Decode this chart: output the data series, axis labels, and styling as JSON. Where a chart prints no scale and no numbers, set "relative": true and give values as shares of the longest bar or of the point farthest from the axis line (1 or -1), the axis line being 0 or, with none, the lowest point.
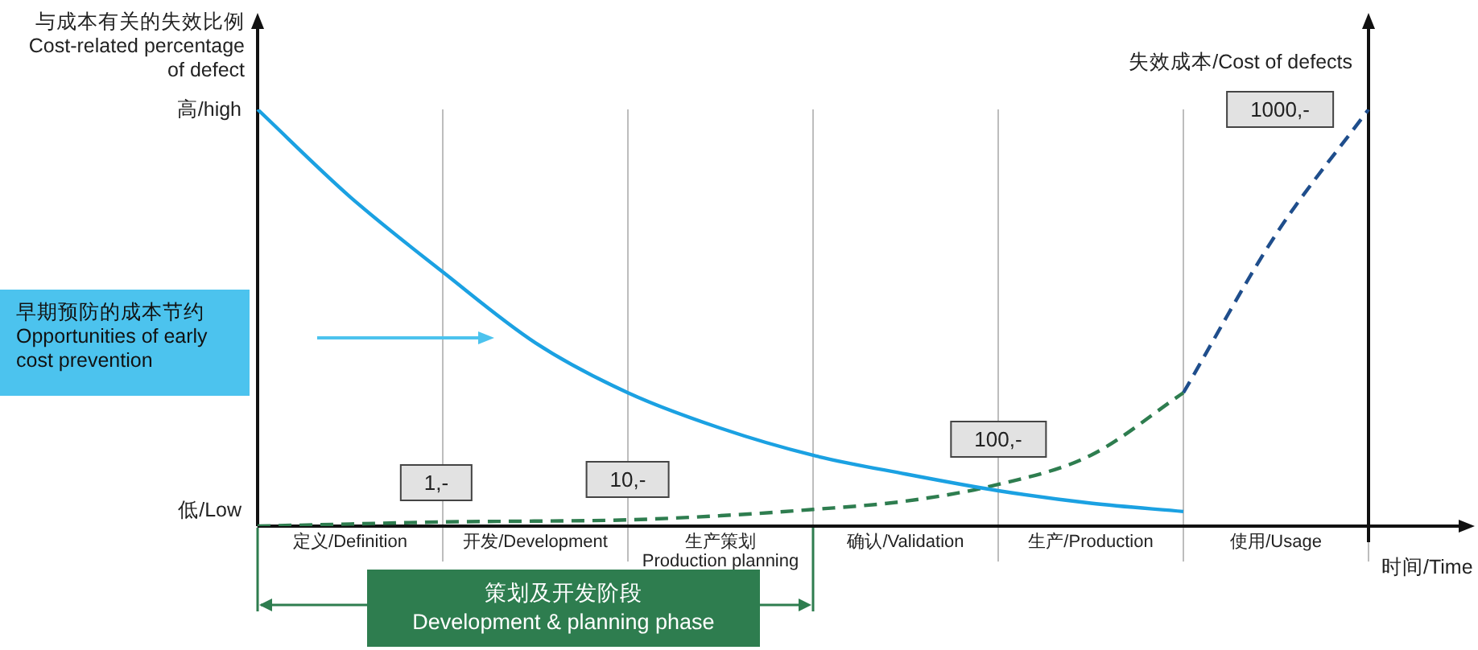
{
  "chart_data": {
    "type": "line",
    "relative": true,
    "ylabel": "与成本有关的失效比例\nCost-related percentage\nof defect",
    "y2label": "失效成本/Cost of defects",
    "xlabel": "时间/Time",
    "categories": [
      null,
      "定义/Definition",
      null,
      "开发/Development",
      null,
      "生产策划\nProduction planning",
      null,
      "确认/Validation",
      null,
      "生产/Production",
      null,
      "使用/Usage",
      null
    ],
    "grid": "x",
    "legend": false,
    "marker": "none",
    "series": [
      {
        "color": "#1ba1e2",
        "line_style": "solid",
        "values": [
          1,
          0.79,
          0.61,
          0.44,
          0.32,
          0.235,
          0.17,
          0.125,
          0.085,
          0.055,
          0.035,
          null,
          null
        ]
      },
      {
        "color": "#2e7d4f",
        "line_style": "dashed",
        "axis": "y2",
        "values": [
          0,
          0.005,
          0.01,
          0.012,
          0.015,
          0.025,
          0.04,
          0.06,
          0.1,
          0.17,
          0.32,
          null,
          null
        ]
      },
      {
        "color": "#1f4e8c",
        "line_style": "dashed",
        "axis": "y2",
        "values": [
          null,
          null,
          null,
          null,
          null,
          null,
          null,
          null,
          null,
          null,
          0.32,
          0.7,
          1.0
        ]
      }
    ],
    "annotations": [
      "高/high",
      "低/Low",
      "早期预防的成本节约\nOpportunities of early\ncost prevention",
      "1,-",
      "10,-",
      "100,-",
      "1000,-",
      "策划及开发阶段\nDevelopment & planning phase"
    ]
  }
}
